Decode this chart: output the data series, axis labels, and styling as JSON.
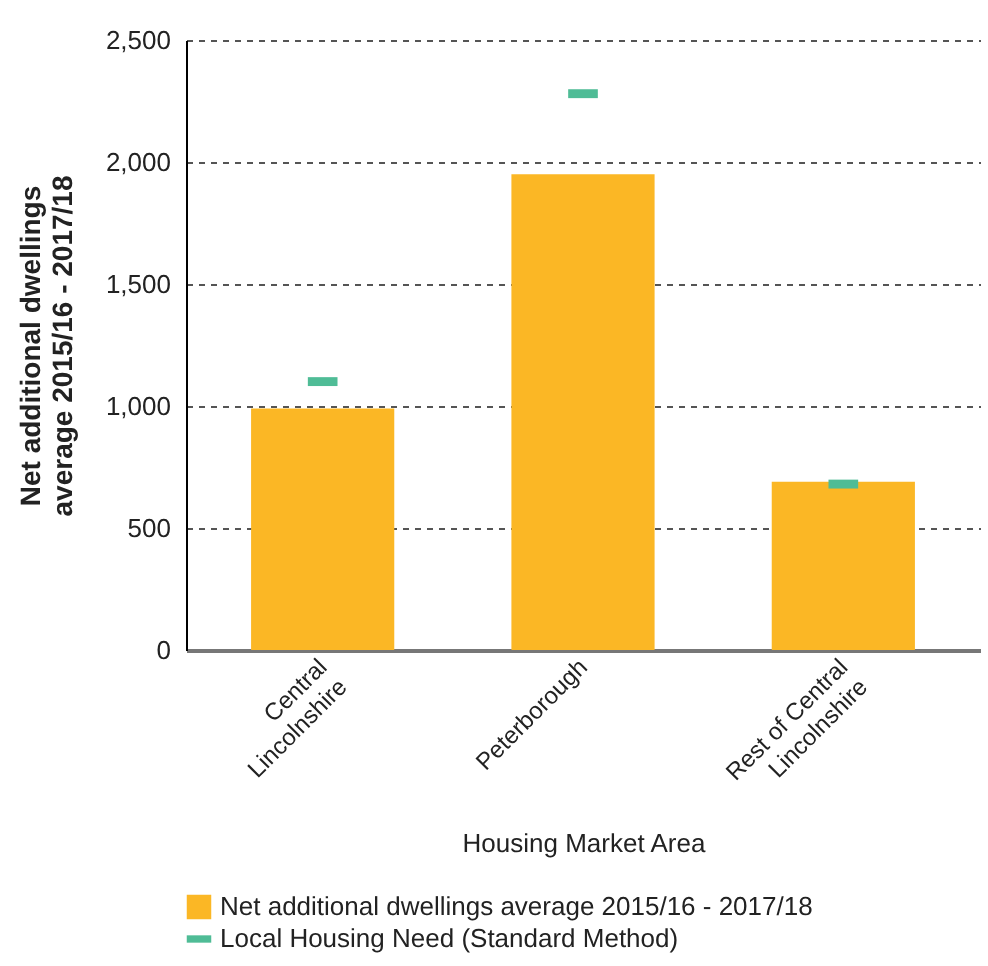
{
  "chart_data": {
    "type": "bar",
    "xlabel": "Housing Market Area",
    "ylabel": "Net additional dwellings average 2015/16 - 2017/18",
    "categories": [
      "Central Lincolnshire",
      "Peterborough",
      "Rest of Central Lincolnshire"
    ],
    "series": [
      {
        "name": "Net additional dwellings average 2015/16 - 2017/18",
        "color": "#fbb725",
        "values": [
          990,
          1950,
          690
        ]
      },
      {
        "name": "Local Housing Need (Standard Method)",
        "type": "scatter",
        "color": "#4fbc96",
        "values": [
          1100,
          2280,
          680
        ]
      }
    ],
    "ylim": [
      0,
      2500
    ],
    "yticks": [
      0,
      500,
      {
        "value": 1000,
        "label": "1,000"
      },
      {
        "value": 1500,
        "label": "1,500"
      },
      {
        "value": 2000,
        "label": "2,000"
      },
      {
        "value": 2500,
        "label": "2,500"
      }
    ],
    "grid": "y",
    "legend": "bottom"
  }
}
